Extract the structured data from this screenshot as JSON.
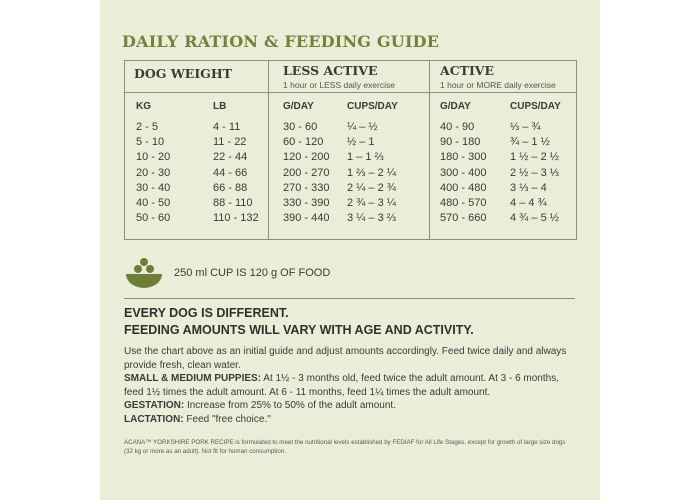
{
  "title": "DAILY RATION & FEEDING GUIDE",
  "table": {
    "groups": {
      "dog_weight": "DOG WEIGHT",
      "less_active": "LESS ACTIVE",
      "less_active_sub": "1 hour or LESS daily exercise",
      "active": "ACTIVE",
      "active_sub": "1 hour or MORE daily exercise"
    },
    "headers": [
      "KG",
      "LB",
      "G/DAY",
      "CUPS/DAY",
      "G/DAY",
      "CUPS/DAY"
    ],
    "kg": [
      "2 - 5",
      "5 - 10",
      "10 - 20",
      "20 - 30",
      "30 - 40",
      "40 - 50",
      "50 - 60"
    ],
    "lb": [
      "4 - 11",
      "11 - 22",
      "22 - 44",
      "44 - 66",
      "66 - 88",
      "88 - 110",
      "110 - 132"
    ],
    "less_gday": [
      "30 - 60",
      "60 - 120",
      "120 - 200",
      "200 - 270",
      "270 - 330",
      "330 - 390",
      "390 - 440"
    ],
    "less_cups": [
      "¼ – ½",
      "½ – 1",
      "1 – 1 ⅔",
      "1 ⅔ – 2 ¼",
      "2 ¼ – 2 ¾",
      "2 ¾ – 3 ¼",
      "3 ¼ – 3 ⅔"
    ],
    "active_gday": [
      "40 - 90",
      "90 - 180",
      "180 - 300",
      "300 - 400",
      "400 - 480",
      "480 - 570",
      "570 - 660"
    ],
    "active_cups": [
      "⅓ – ¾",
      "¾ – 1 ½",
      "1 ½ – 2 ½",
      "2 ½ – 3 ⅓",
      "3 ⅓ – 4",
      "4 – 4 ¾",
      "4 ¾ – 5 ½"
    ]
  },
  "cup_note": "250 ml CUP IS 120 g OF FOOD",
  "headline_1": "EVERY DOG IS DIFFERENT.",
  "headline_2": "FEEDING AMOUNTS WILL VARY WITH AGE AND ACTIVITY.",
  "intro": "Use the chart above as an initial guide and adjust amounts accordingly. Feed twice daily and always provide fresh, clean water.",
  "puppies_label": "SMALL & MEDIUM PUPPIES:",
  "puppies_text": " At 1½ - 3 months old, feed twice the adult amount. At 3 - 6 months, feed 1½ times the adult amount. At 6 - 11 months, feed 1¼ times the adult amount.",
  "gestation_label": "GESTATION:",
  "gestation_text": " Increase from 25% to 50% of the adult amount.",
  "lactation_label": "LACTATION:",
  "lactation_text": " Feed \"free choice.\"",
  "footnote": "ACANA™ YORKSHIRE PORK RECIPE is formulated to meet the nutritional levels established by FEDIAF for All Life Stages, except for growth of large size dogs (32 kg or more as an adult). Not fit for human consumption.",
  "colors": {
    "accent": "#72823a",
    "panel": "#ecedd8",
    "bowl": "#6e7e3a"
  },
  "icons": {
    "cup": "food-bowl-icon"
  }
}
